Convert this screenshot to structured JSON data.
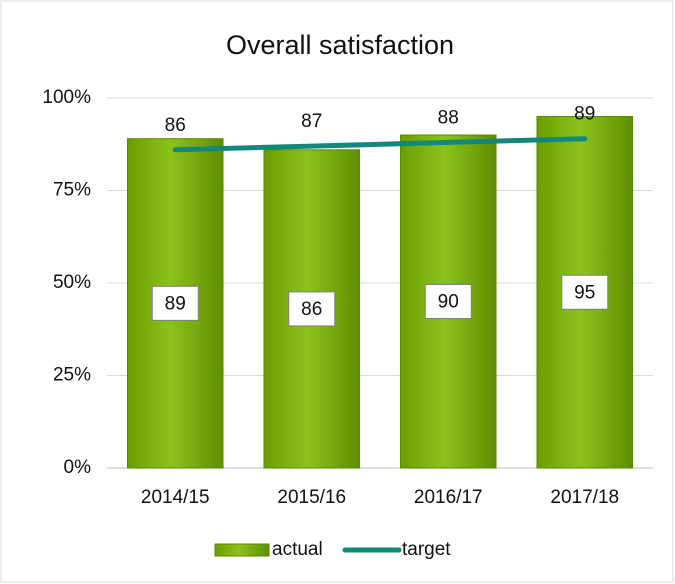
{
  "chart_data": {
    "type": "bar",
    "title": "Overall satisfaction",
    "categories": [
      "2014/15",
      "2015/16",
      "2016/17",
      "2017/18"
    ],
    "series": [
      {
        "name": "actual",
        "type": "bar",
        "color": "#8cc21c",
        "values": [
          89,
          86,
          90,
          95
        ]
      },
      {
        "name": "target",
        "type": "line",
        "color": "#11887a",
        "values": [
          86,
          87,
          88,
          89
        ]
      }
    ],
    "ylim": [
      0,
      100
    ],
    "yticks": [
      {
        "value": 0,
        "label": "0%"
      },
      {
        "value": 25,
        "label": "25%"
      },
      {
        "value": 50,
        "label": "50%"
      },
      {
        "value": 75,
        "label": "75%"
      },
      {
        "value": 100,
        "label": "100%"
      }
    ],
    "grid": true,
    "legend": "bottom"
  }
}
